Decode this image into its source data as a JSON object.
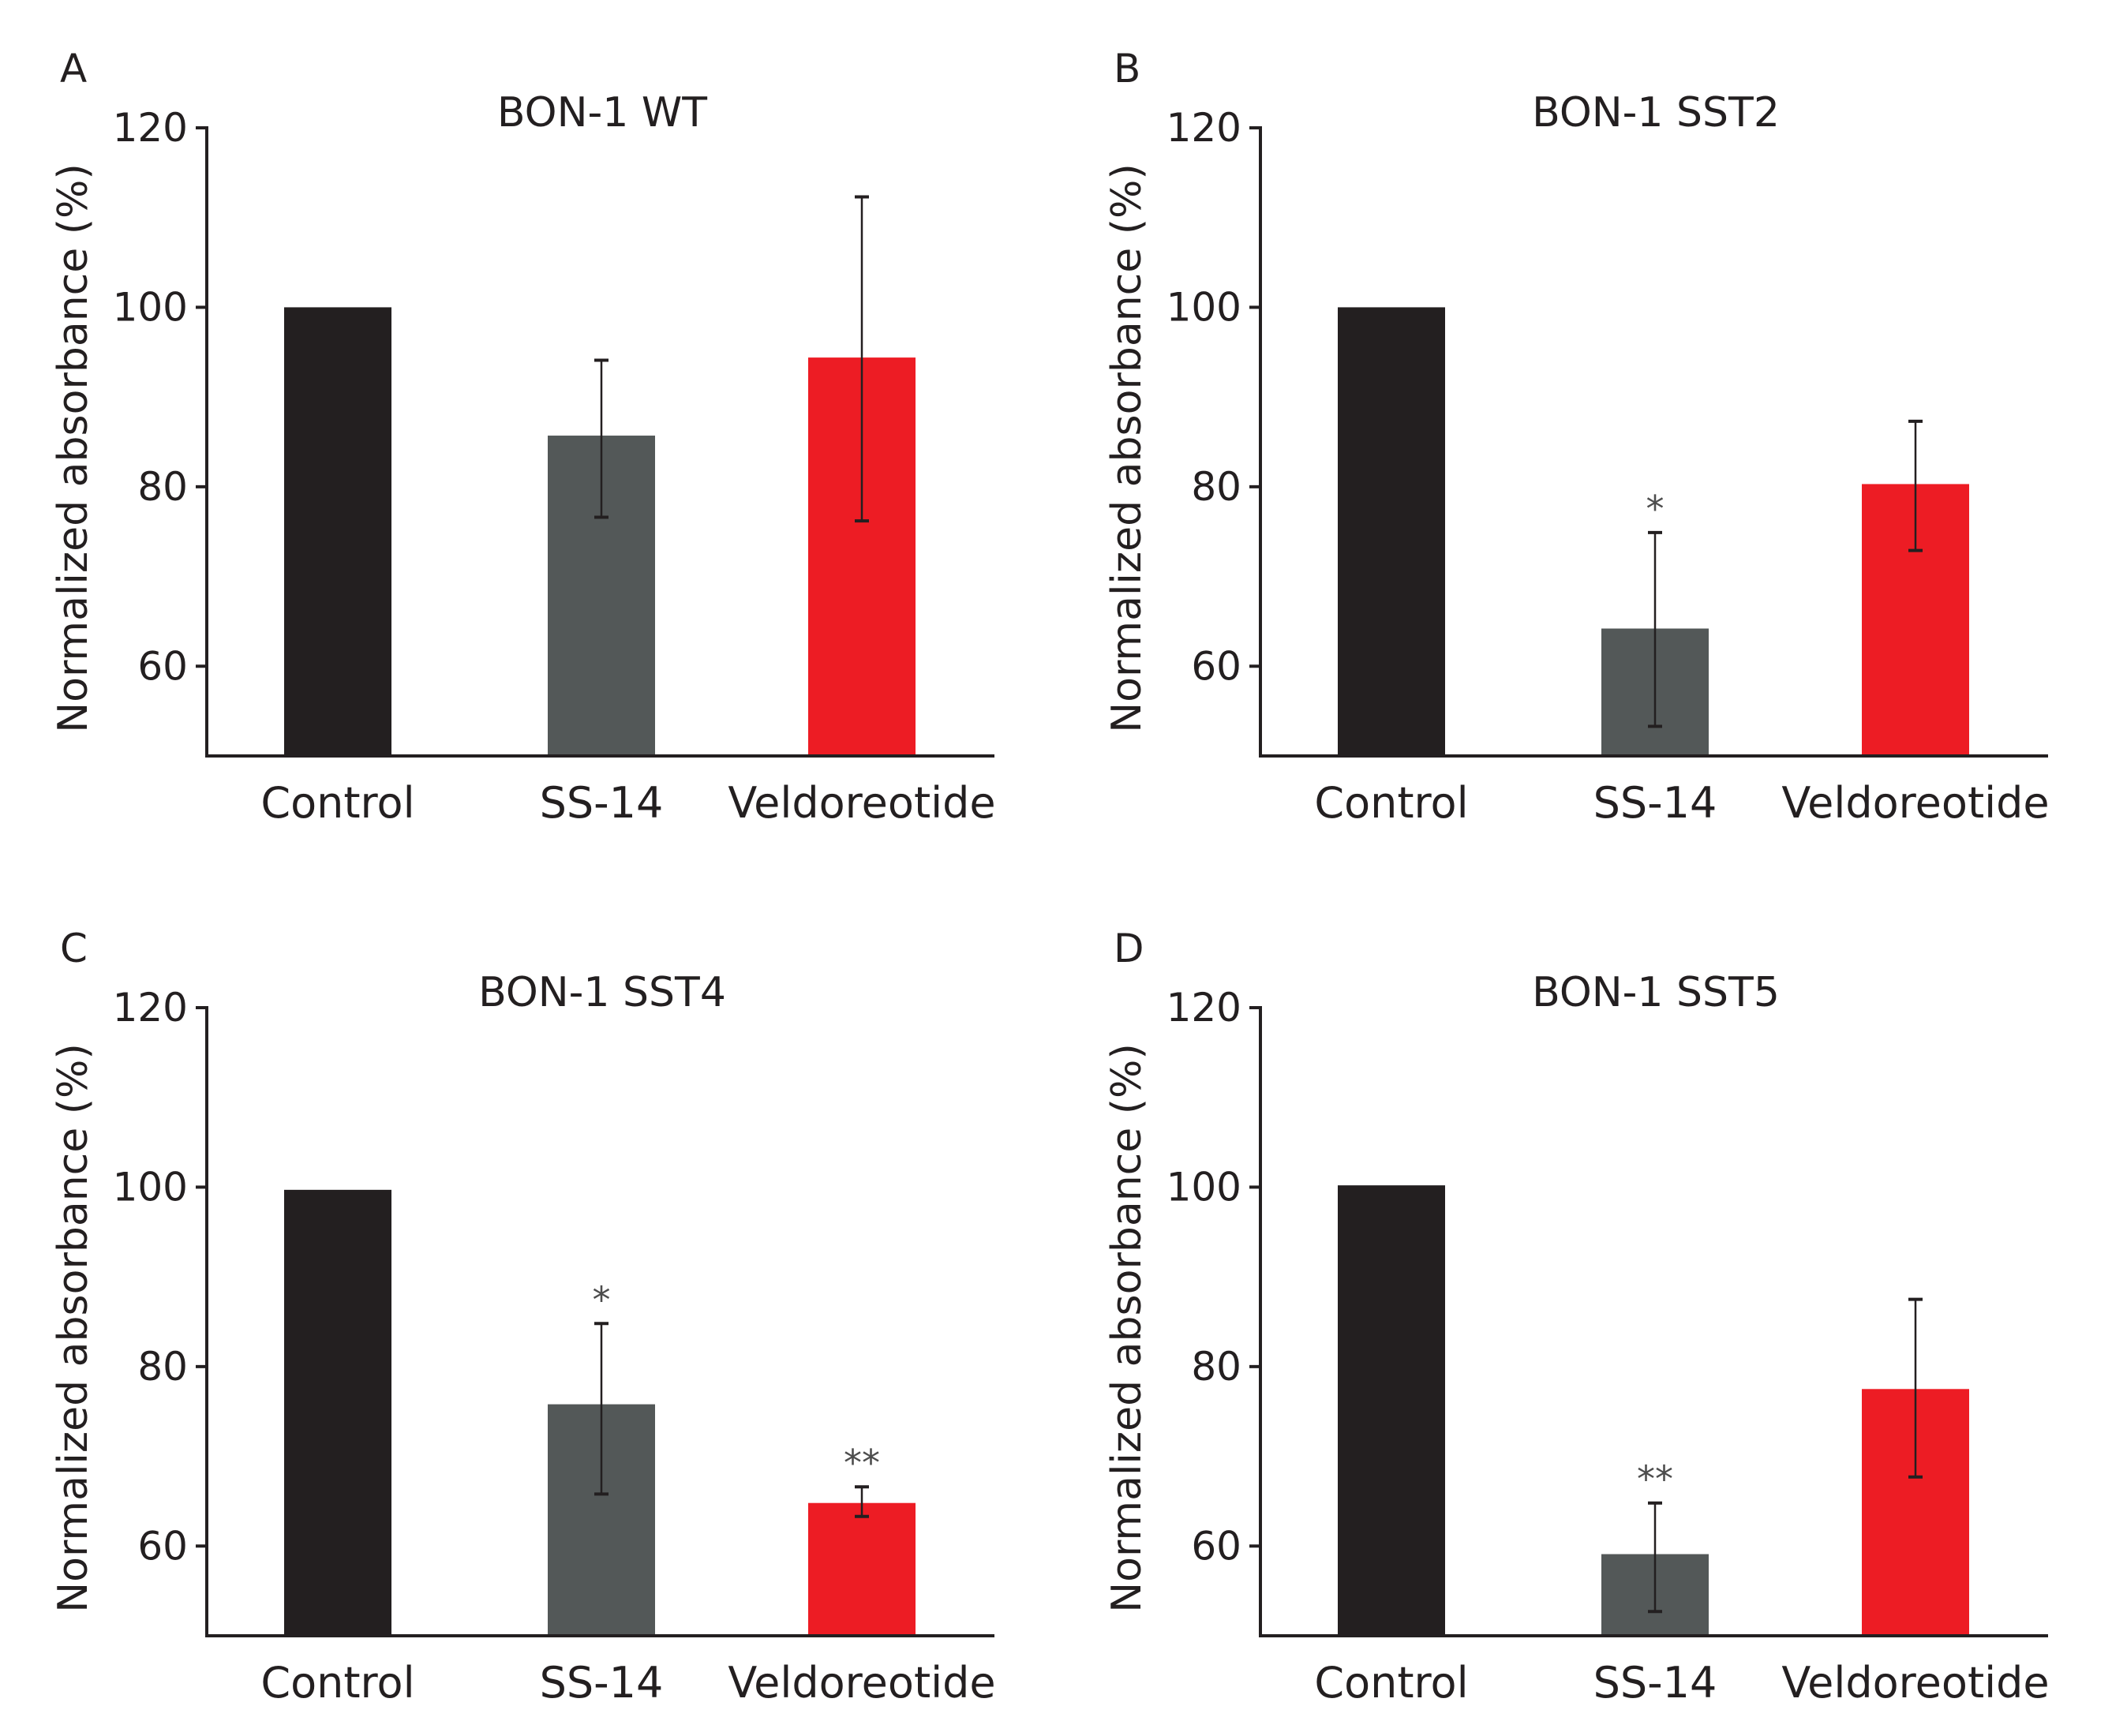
{
  "chart_data": [
    {
      "panel": "A",
      "type": "bar",
      "title": "BON-1 WT",
      "ylabel": "Normalized absorbance (%)",
      "xlabel": "",
      "ylim": [
        50,
        120
      ],
      "yticks": [
        60,
        80,
        100,
        120
      ],
      "categories": [
        "Control",
        "SS-14",
        "Veldoreotide"
      ],
      "values": [
        100,
        85.7,
        94.4
      ],
      "err_low": [
        100,
        76.6,
        76.2
      ],
      "err_high": [
        100,
        94.1,
        112.3
      ],
      "significance": [
        "",
        "",
        ""
      ],
      "colors": [
        "#231f20",
        "#535858",
        "#ed1c24"
      ]
    },
    {
      "panel": "B",
      "type": "bar",
      "title": "BON-1 SST2",
      "ylabel": "Normalized absorbance (%)",
      "xlabel": "",
      "ylim": [
        50,
        120
      ],
      "yticks": [
        60,
        80,
        100,
        120
      ],
      "categories": [
        "Control",
        "SS-14",
        "Veldoreotide"
      ],
      "values": [
        100,
        64.2,
        80.3
      ],
      "err_low": [
        100,
        53.3,
        72.9
      ],
      "err_high": [
        100,
        74.9,
        87.3
      ],
      "significance": [
        "",
        "*",
        ""
      ],
      "colors": [
        "#231f20",
        "#535858",
        "#ed1c24"
      ]
    },
    {
      "panel": "C",
      "type": "bar",
      "title": "BON-1 SST4",
      "ylabel": "Normalized absorbance (%)",
      "xlabel": "",
      "ylim": [
        50,
        120
      ],
      "yticks": [
        60,
        80,
        100,
        120
      ],
      "categories": [
        "Control",
        "SS-14",
        "Veldoreotide"
      ],
      "values": [
        99.7,
        75.8,
        64.8
      ],
      "err_low": [
        99.7,
        65.8,
        63.3
      ],
      "err_high": [
        99.7,
        84.8,
        66.6
      ],
      "significance": [
        "",
        "*",
        "**"
      ],
      "colors": [
        "#231f20",
        "#535858",
        "#ed1c24"
      ]
    },
    {
      "panel": "D",
      "type": "bar",
      "title": "BON-1 SST5",
      "ylabel": "Normalized absorbance (%)",
      "xlabel": "",
      "ylim": [
        50,
        120
      ],
      "yticks": [
        60,
        80,
        100,
        120
      ],
      "categories": [
        "Control",
        "SS-14",
        "Veldoreotide"
      ],
      "values": [
        100.2,
        59.1,
        77.5
      ],
      "err_low": [
        100.2,
        52.7,
        67.7
      ],
      "err_high": [
        100.2,
        64.8,
        87.5
      ],
      "significance": [
        "",
        "**",
        ""
      ],
      "colors": [
        "#231f20",
        "#535858",
        "#ed1c24"
      ]
    }
  ]
}
